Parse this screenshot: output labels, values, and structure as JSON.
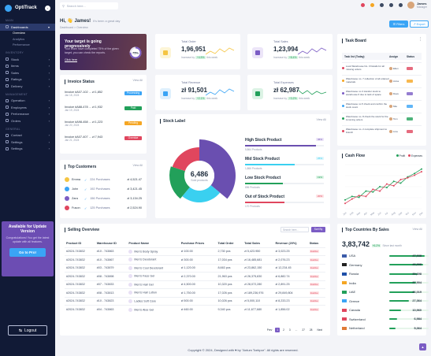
{
  "brand": "OptiTrack",
  "sidebar": {
    "section_main": "MAIN",
    "dashboards": "Dashboards",
    "sub": [
      "Overview",
      "Analytics",
      "Performance"
    ],
    "section_inv": "INVENTORY",
    "inv_items": [
      "Stock",
      "Items",
      "Sales",
      "Ratings",
      "Delivery"
    ],
    "section_mgmt": "MANAGEMENT",
    "mgmt_items": [
      "Operation",
      "Employees",
      "Performance",
      "Orders"
    ],
    "section_general": "GENERAL",
    "general_items": [
      "Contact",
      "Settings",
      "Settings"
    ]
  },
  "promo": {
    "title": "Available for Update Version",
    "text": "Congratulations! You get the latest update with all features.",
    "button": "Go to Pro!"
  },
  "logout": "Logout",
  "header": {
    "search_placeholder": "Search here...",
    "greeting": "Hi, 👋 James!",
    "greeting_sub": "It's been a great day",
    "breadcrumb": "Dashboard  >  Overview",
    "user_name": "James",
    "user_role": "Manager",
    "filters": "Filters",
    "export": "Export",
    "icon_colors": [
      "#e0465e",
      "#f5a623",
      "#3d4a63",
      "#3d4a63",
      "#3d4a63"
    ]
  },
  "target": {
    "title": "Your target is going progressively",
    "text": "Your team have completed 75% of the given target, you can check the reports.",
    "link": "Click here",
    "percent": "75%",
    "progress": 0.75
  },
  "kpis": [
    {
      "label": "Total Order",
      "value": "1,96,951",
      "delta": "+4.5%",
      "note": "Increase by",
      "note2": "this week",
      "color": "#f5c542",
      "bg": "#fdf5d6",
      "trend": "up"
    },
    {
      "label": "Total Sales",
      "value": "1,23,994",
      "delta": "+8.4%",
      "note": "Increase by",
      "note2": "this week",
      "color": "#7b5cc4",
      "bg": "#ece5f8",
      "trend": "up"
    },
    {
      "label": "Total Revenue",
      "value": "zł 91,501",
      "delta": "+2.1%",
      "note": "Increase by",
      "note2": "this week",
      "color": "#3aa4f5",
      "bg": "#dff0fd",
      "trend": "up"
    },
    {
      "label": "Total Expenses",
      "value": "zł 62,987",
      "delta": "+3.2%",
      "note": "Increase by",
      "note2": "this week",
      "color": "#22a05a",
      "bg": "#dcf3e5",
      "trend": "down"
    }
  ],
  "invoice": {
    "title": "Invoice Status",
    "view_all": "View All",
    "rows": [
      {
        "id": "Invoice #A07-102 ... zł 1,852",
        "date": "Jan 18, 2024",
        "status": "Processing",
        "color": "#3aa4f5"
      },
      {
        "id": "Invoice #A88-478 ... zł 1,932",
        "date": "Jan 19, 2024",
        "status": "Paid",
        "color": "#22a05a"
      },
      {
        "id": "Invoice #A98-458 ... zł 1,223",
        "date": "Jan 20, 2024",
        "status": "Pending",
        "color": "#f5a623"
      },
      {
        "id": "Invoice #A07-407 ... zł 7,943",
        "date": "Jan 21, 2024",
        "status": "Overdue",
        "color": "#e0465e"
      }
    ]
  },
  "customers": {
    "title": "Top Customers",
    "view_all": "View All",
    "rows": [
      {
        "name": "Emma",
        "orders": "224 Purchases",
        "amount": "zł 4,521.47"
      },
      {
        "name": "John",
        "orders": "192 Purchases",
        "amount": "zł 3,421.45"
      },
      {
        "name": "Zara",
        "orders": "156 Purchases",
        "amount": "zł 3,134.25"
      },
      {
        "name": "Fuson",
        "orders": "125 Purchases",
        "amount": "zł 2,524.90"
      }
    ]
  },
  "stock": {
    "title": "Stock Label",
    "view_all": "View All",
    "center_value": "6,486",
    "center_label": "Sold products",
    "items": [
      {
        "name": "High Stock Product",
        "count": "5,864 Products",
        "badge": "36%",
        "color": "#6a4fb0",
        "pct": 0.36,
        "bg": "#ece5f8"
      },
      {
        "name": "Mid Stock Product",
        "count": "1,866 Products",
        "badge": "25%",
        "color": "#3ad0f0",
        "pct": 0.25,
        "bg": "#def6fc"
      },
      {
        "name": "Low Stock Product",
        "count": "896 Products",
        "badge": "19%",
        "color": "#22a05a",
        "pct": 0.19,
        "bg": "#dcf3e5"
      },
      {
        "name": "Out of Stock Product",
        "count": "170 Products",
        "badge": "20%",
        "color": "#e0465e",
        "pct": 0.2,
        "bg": "#fde2e4"
      }
    ]
  },
  "taskboard": {
    "title": "Task Board",
    "col_task": "Task list (Today)",
    "col_assign": "Assign",
    "col_status": "Status",
    "rows": [
      {
        "task": "Look Warehouse No. 3 Details for all missing orders",
        "who": "Ellen",
        "color": "#e0465e"
      },
      {
        "task": "Warehouse no. 7 collection of all ordered materials",
        "who": "Anna",
        "color": "#f5a623"
      },
      {
        "task": "Warehouse no 3 transfer stock to warehouse 6 due to lack of space",
        "who": "Dave",
        "color": "#7b5cc4"
      },
      {
        "task": "Warehouse no 5 check and confirm the stock count",
        "who": "Mia",
        "color": "#3aa4f5"
      },
      {
        "task": "Warehouse no. 8 check the stock for the incoming orders",
        "who": "Tom",
        "color": "#22a05a"
      },
      {
        "task": "Warehouse no. 2 complete shipment to branch",
        "who": "Lina",
        "color": "#e0465e"
      }
    ]
  },
  "cashflow": {
    "title": "Cash Flow",
    "legend": [
      "Profit",
      "Expenses"
    ],
    "colors": [
      "#22a05a",
      "#e0465e"
    ],
    "chart_data": {
      "type": "line",
      "x": [
        "Jan",
        "Feb",
        "Mar",
        "Apr",
        "May",
        "Jun",
        "Jul",
        "Aug",
        "Sep",
        "Oct",
        "Nov",
        "Dec"
      ],
      "series": [
        {
          "name": "Profit",
          "values": [
            20,
            28,
            26,
            40,
            38,
            50,
            48,
            62,
            58,
            72,
            80,
            90
          ]
        },
        {
          "name": "Expenses",
          "values": [
            12,
            22,
            30,
            28,
            44,
            40,
            56,
            52,
            66,
            70,
            76,
            84
          ]
        }
      ],
      "ylim": [
        0,
        100
      ]
    }
  },
  "sales": {
    "title": "Selling Overview",
    "search_placeholder": "Search here...",
    "sort": "Sort By",
    "columns": [
      "Product ID",
      "Warehouse ID",
      "Product Name",
      "Purchase Prices",
      "Total Order",
      "Total Sales",
      "Revenue (20%)",
      "Status"
    ],
    "rows": [
      [
        "#2024-743832",
        "#10 - 743863",
        "Men's Body Spray",
        "zł 100.00",
        "2,730 pcs",
        "zł 5,423.950",
        "zł 3,023.25",
        "Inactive"
      ],
      [
        "#2024-743832",
        "#10 - 743867",
        "Men's Deodorant",
        "zł 300.00",
        "17,034 pcs",
        "zł 16,485,681",
        "zł 2,076.23",
        "Inactive"
      ],
      [
        "#2024-743832",
        "#03 - 743879",
        "Men's Cool Deodorant",
        "zł 1,120.00",
        "8,663 pcs",
        "zł 23,862,150",
        "zł 12,234.45",
        "Inactive"
      ],
      [
        "#2024-743832",
        "#08 - 743898",
        "Men's Face Gel",
        "zł 2,370.00",
        "21,963 pcs",
        "zł 26,375,830",
        "zł 6,882.74",
        "Inactive"
      ],
      [
        "#2024-743832",
        "#07 - 743833",
        "Men's Hair Gel",
        "zł 4,500.00",
        "10,320 pcs",
        "zł 28,072,280",
        "zł 2,891.25",
        "Inactive"
      ],
      [
        "#2024-743832",
        "#08 - 743813",
        "Men's Hair Lotion",
        "zł 1,750.00",
        "17,026 pcs",
        "zł 189,236,976",
        "zł 29,849,804",
        "Inactive"
      ],
      [
        "#2024-743832",
        "#10 - 743823",
        "Ladies Soft Care",
        "zł 500.00",
        "10,026 pcs",
        "zł 5,000,110",
        "zł 8,233.23",
        "Inactive"
      ],
      [
        "#2024-743832",
        "#04 - 743863",
        "Men's Aloe Gel",
        "zł 460.00",
        "9,340 pcs",
        "zł 11,677,680",
        "zł 1,856.02",
        "Inactive"
      ]
    ],
    "pagination": [
      "Prev",
      "1",
      "2",
      "3",
      "...",
      "27",
      "28",
      "Next"
    ]
  },
  "countries": {
    "title": "Top Countries By Sales",
    "view_all": "View All",
    "total": "3,83,742",
    "delta": "+6.2%",
    "note": "Since last month",
    "rows": [
      {
        "name": "USA",
        "value": "47,938",
        "pct": 0.9,
        "flag": "#3c5ba9"
      },
      {
        "name": "Germany",
        "value": "46,998",
        "pct": 0.85,
        "flag": "#222222"
      },
      {
        "name": "Russia",
        "value": "39,698",
        "pct": 0.72,
        "flag": "#1f4fa8"
      },
      {
        "name": "India",
        "value": "37,904",
        "pct": 0.68,
        "flag": "#f5a623"
      },
      {
        "name": "UAE",
        "value": "36,019",
        "pct": 0.64,
        "flag": "#22a05a"
      },
      {
        "name": "Greece",
        "value": "27,364",
        "pct": 0.5,
        "flag": "#3aa4f5"
      },
      {
        "name": "Canada",
        "value": "10,960",
        "pct": 0.3,
        "flag": "#e0465e"
      },
      {
        "name": "Switzerland",
        "value": "6,984",
        "pct": 0.2,
        "flag": "#e0465e"
      },
      {
        "name": "Netherland",
        "value": "5,364",
        "pct": 0.15,
        "flag": "#e07a36"
      }
    ]
  },
  "footer": "Copyright © 2024, Designed with ♥ by \"Antum Tcebpor\". All rights are reserved.",
  "fab": "▲"
}
